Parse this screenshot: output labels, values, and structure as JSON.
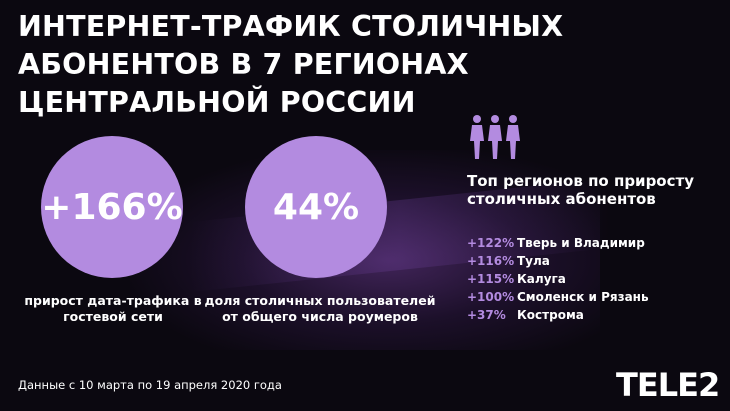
{
  "title": "Интернет-трафик столичных абонентов в 7 регионах Центральной России",
  "stats": [
    {
      "value": "+166%",
      "caption": "прирост дата-трафика в гостевой сети"
    },
    {
      "value": "44%",
      "caption": "доля столичных пользователей от общего числа роумеров"
    }
  ],
  "top": {
    "icon": "people-walking-icon",
    "title": "Топ регионов по приросту столичных абонентов",
    "regions": [
      {
        "value": "+122%",
        "name": "Тверь и Владимир"
      },
      {
        "value": "+116%",
        "name": "Тула"
      },
      {
        "value": "+115%",
        "name": "Калуга"
      },
      {
        "value": "+100%",
        "name": "Смоленск и Рязань"
      },
      {
        "value": "+37%",
        "name": "Кострома"
      }
    ]
  },
  "footnote": "Данные с 10 марта по 19 апреля 2020 года",
  "logo": "TELE2",
  "colors": {
    "accent": "#b38be0",
    "background": "#0b0810"
  }
}
